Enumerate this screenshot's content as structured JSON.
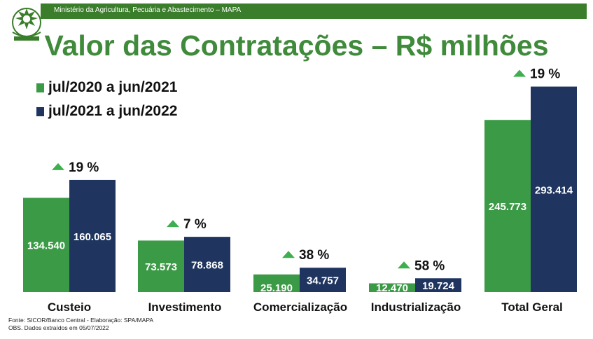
{
  "header": {
    "ministry": "Ministério da Agricultura, Pecuária e Abastecimento – MAPA"
  },
  "colors": {
    "header_green": "#3a7d2a",
    "title_green": "#3f8a3b",
    "series_green": "#3b9a45",
    "series_navy": "#1f3560",
    "arrow_green": "#3fae4f"
  },
  "chart_data": {
    "type": "bar",
    "title": "Valor das Contratações – R$ milhões",
    "categories": [
      "Custeio",
      "Investimento",
      "Comercialização",
      "Industrialização",
      "Total Geral"
    ],
    "series": [
      {
        "name": "jul/2020 a jun/2021",
        "values": [
          134540,
          73573,
          25190,
          12470,
          245773
        ],
        "labels": [
          "134.540",
          "73.573",
          "25.190",
          "12.470",
          "245.773"
        ]
      },
      {
        "name": "jul/2021 a jun/2022",
        "values": [
          160065,
          78868,
          34757,
          19724,
          293414
        ],
        "labels": [
          "160.065",
          "78.868",
          "34.757",
          "19.724",
          "293.414"
        ]
      }
    ],
    "growth_labels": [
      "19 %",
      "7 %",
      "38 %",
      "58 %",
      "19 %"
    ],
    "legend_position": "top-left",
    "grid": false
  },
  "footer": {
    "source": "Fonte: SICOR/Banco Central - Elaboração: SPA/MAPA",
    "note": "OBS. Dados extraídos em 05/07/2022"
  }
}
